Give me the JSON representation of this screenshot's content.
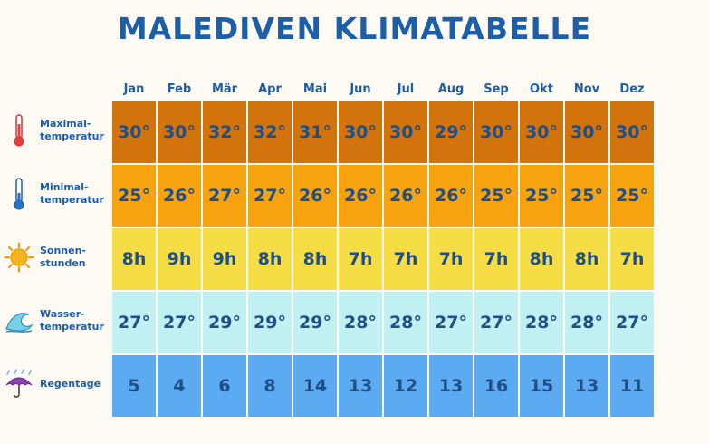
{
  "title": "MALEDIVEN KLIMATABELLE",
  "chart_data": {
    "type": "table",
    "title": "MALEDIVEN KLIMATABELLE",
    "columns": [
      "Jan",
      "Feb",
      "Mär",
      "Apr",
      "Mai",
      "Jun",
      "Jul",
      "Aug",
      "Sep",
      "Okt",
      "Nov",
      "Dez"
    ],
    "rows": [
      {
        "key": "max",
        "label": "Maximal-\ntemperatur",
        "icon": "thermometer-hot-icon",
        "color": "#d2730b",
        "suffix": "°",
        "values": [
          30,
          30,
          32,
          32,
          31,
          30,
          30,
          29,
          30,
          30,
          30,
          30
        ]
      },
      {
        "key": "min",
        "label": "Minimal-\ntemperatur",
        "icon": "thermometer-cold-icon",
        "color": "#f7a20f",
        "suffix": "°",
        "values": [
          25,
          26,
          27,
          27,
          26,
          26,
          26,
          26,
          25,
          25,
          25,
          25
        ]
      },
      {
        "key": "sun",
        "label": "Sonnen-\nstunden",
        "icon": "sun-icon",
        "color": "#f6dd45",
        "suffix": "h",
        "values": [
          8,
          9,
          9,
          8,
          8,
          7,
          7,
          7,
          7,
          8,
          8,
          7
        ]
      },
      {
        "key": "water",
        "label": "Wasser-\ntemperatur",
        "icon": "wave-icon",
        "color": "#c0f0f2",
        "suffix": "°",
        "values": [
          27,
          27,
          29,
          29,
          29,
          28,
          28,
          27,
          27,
          28,
          28,
          27
        ]
      },
      {
        "key": "rain",
        "label": "Regentage",
        "icon": "umbrella-rain-icon",
        "color": "#5baaf2",
        "suffix": "",
        "values": [
          5,
          4,
          6,
          8,
          14,
          13,
          12,
          13,
          16,
          15,
          13,
          11
        ]
      }
    ]
  }
}
